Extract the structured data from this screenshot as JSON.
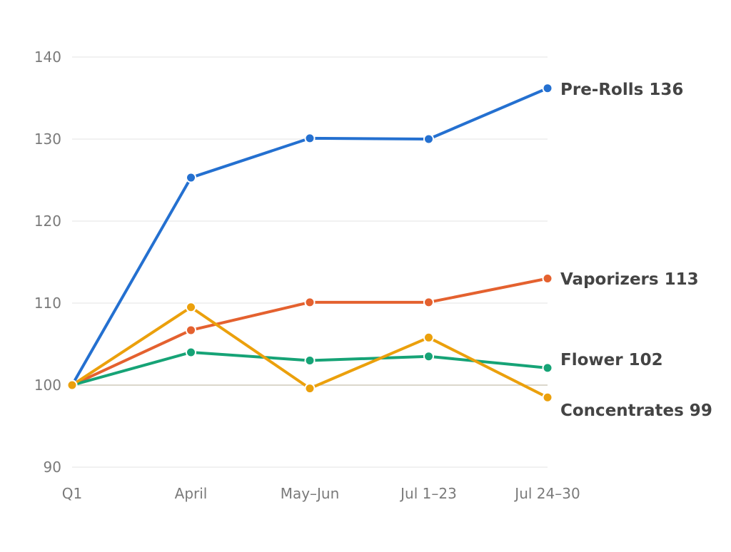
{
  "chart_data": {
    "type": "line",
    "title": "",
    "xlabel": "",
    "ylabel": "",
    "categories": [
      "Q1",
      "April",
      "May–Jun",
      "Jul 1–23",
      "Jul 24–30"
    ],
    "ylim": [
      90,
      140
    ],
    "yticks": [
      90,
      100,
      110,
      120,
      130,
      140
    ],
    "grid": true,
    "baseline": 100,
    "legend": "end-of-line labels",
    "series": [
      {
        "name": "Pre-Rolls",
        "end_label": "Pre-Rolls 136",
        "color": "#2470d0",
        "values": [
          100,
          125.3,
          130.1,
          130.0,
          136.2
        ]
      },
      {
        "name": "Vaporizers",
        "end_label": "Vaporizers 113",
        "color": "#e4612f",
        "values": [
          100,
          106.7,
          110.1,
          110.1,
          113.0
        ]
      },
      {
        "name": "Flower",
        "end_label": "Flower 102",
        "color": "#16a376",
        "values": [
          100,
          104.0,
          103.0,
          103.5,
          102.1
        ]
      },
      {
        "name": "Concentrates",
        "end_label": "Concentrates 99",
        "color": "#eba00c",
        "values": [
          100,
          109.5,
          99.6,
          105.8,
          98.5
        ]
      }
    ]
  }
}
